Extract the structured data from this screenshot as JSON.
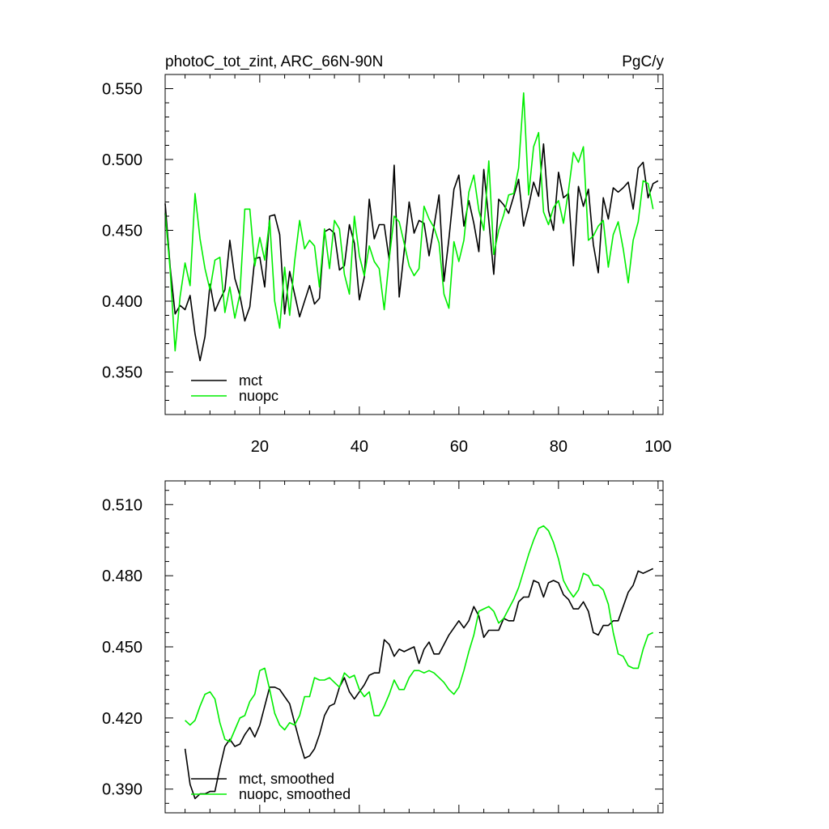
{
  "chart_data": [
    {
      "type": "line",
      "title": "photoC_tot_zint, ARC_66N-90N",
      "units": "PgC/y",
      "xlim": [
        1,
        101
      ],
      "ylim": [
        0.32,
        0.56
      ],
      "xticks": [
        20,
        40,
        60,
        80,
        100
      ],
      "xticklabels": [
        "20",
        "40",
        "60",
        "80",
        "100"
      ],
      "yticks": [
        0.35,
        0.4,
        0.45,
        0.5,
        0.55
      ],
      "yticklabels": [
        "0.350",
        "0.400",
        "0.450",
        "0.500",
        "0.550"
      ],
      "x_start": 1,
      "legend_position": "bottom-left",
      "series": [
        {
          "name": "mct",
          "color": "#000000",
          "values": [
            0.469,
            0.424,
            0.391,
            0.397,
            0.394,
            0.404,
            0.377,
            0.358,
            0.375,
            0.412,
            0.393,
            0.401,
            0.408,
            0.443,
            0.416,
            0.404,
            0.386,
            0.396,
            0.43,
            0.431,
            0.41,
            0.46,
            0.461,
            0.447,
            0.391,
            0.421,
            0.405,
            0.389,
            0.4,
            0.411,
            0.398,
            0.402,
            0.449,
            0.451,
            0.448,
            0.422,
            0.425,
            0.454,
            0.441,
            0.401,
            0.417,
            0.472,
            0.444,
            0.454,
            0.454,
            0.429,
            0.496,
            0.403,
            0.435,
            0.47,
            0.448,
            0.457,
            0.455,
            0.432,
            0.453,
            0.475,
            0.414,
            0.444,
            0.479,
            0.489,
            0.453,
            0.471,
            0.455,
            0.435,
            0.493,
            0.457,
            0.419,
            0.472,
            0.468,
            0.462,
            0.474,
            0.486,
            0.453,
            0.467,
            0.484,
            0.474,
            0.511,
            0.464,
            0.45,
            0.491,
            0.473,
            0.476,
            0.425,
            0.481,
            0.467,
            0.479,
            0.44,
            0.42,
            0.473,
            0.458,
            0.48,
            0.477,
            0.48,
            0.484,
            0.465,
            0.494,
            0.498,
            0.473,
            0.483,
            0.485
          ]
        },
        {
          "name": "nuopc",
          "color": "#00ee00",
          "values": [
            0.462,
            0.422,
            0.365,
            0.403,
            0.427,
            0.411,
            0.476,
            0.444,
            0.423,
            0.408,
            0.429,
            0.431,
            0.392,
            0.41,
            0.388,
            0.405,
            0.465,
            0.465,
            0.425,
            0.445,
            0.429,
            0.457,
            0.4,
            0.381,
            0.424,
            0.39,
            0.428,
            0.457,
            0.437,
            0.443,
            0.439,
            0.41,
            0.451,
            0.423,
            0.457,
            0.451,
            0.419,
            0.405,
            0.46,
            0.432,
            0.418,
            0.439,
            0.428,
            0.423,
            0.394,
            0.43,
            0.46,
            0.456,
            0.441,
            0.425,
            0.418,
            0.423,
            0.467,
            0.458,
            0.452,
            0.441,
            0.405,
            0.395,
            0.442,
            0.428,
            0.443,
            0.477,
            0.489,
            0.464,
            0.45,
            0.499,
            0.433,
            0.45,
            0.461,
            0.475,
            0.476,
            0.494,
            0.547,
            0.475,
            0.509,
            0.519,
            0.463,
            0.454,
            0.466,
            0.471,
            0.455,
            0.478,
            0.505,
            0.498,
            0.509,
            0.443,
            0.446,
            0.453,
            0.457,
            0.424,
            0.447,
            0.456,
            0.437,
            0.413,
            0.443,
            0.456,
            0.485,
            0.483,
            0.465
          ]
        }
      ]
    },
    {
      "type": "line",
      "title": "",
      "units": "",
      "xlim": [
        1,
        101
      ],
      "ylim": [
        0.38,
        0.52
      ],
      "xticks": [
        20,
        40,
        60,
        80,
        100
      ],
      "xticklabels": [],
      "yticks": [
        0.39,
        0.42,
        0.45,
        0.48,
        0.51
      ],
      "yticklabels": [
        "0.390",
        "0.420",
        "0.450",
        "0.480",
        "0.510"
      ],
      "x_start": 5,
      "legend_position": "bottom-left",
      "series": [
        {
          "name": "mct, smoothed",
          "color": "#000000",
          "values": [
            0.407,
            0.392,
            0.386,
            0.388,
            0.388,
            0.389,
            0.389,
            0.399,
            0.408,
            0.411,
            0.408,
            0.409,
            0.413,
            0.416,
            0.412,
            0.417,
            0.425,
            0.433,
            0.433,
            0.432,
            0.429,
            0.426,
            0.418,
            0.41,
            0.403,
            0.404,
            0.407,
            0.413,
            0.421,
            0.425,
            0.426,
            0.433,
            0.437,
            0.431,
            0.428,
            0.431,
            0.434,
            0.438,
            0.439,
            0.439,
            0.453,
            0.451,
            0.446,
            0.449,
            0.448,
            0.449,
            0.45,
            0.443,
            0.449,
            0.452,
            0.447,
            0.447,
            0.451,
            0.455,
            0.458,
            0.461,
            0.458,
            0.461,
            0.467,
            0.463,
            0.454,
            0.457,
            0.457,
            0.457,
            0.462,
            0.461,
            0.461,
            0.469,
            0.471,
            0.471,
            0.478,
            0.477,
            0.471,
            0.477,
            0.478,
            0.477,
            0.472,
            0.47,
            0.466,
            0.466,
            0.469,
            0.465,
            0.456,
            0.455,
            0.459,
            0.459,
            0.461,
            0.461,
            0.467,
            0.473,
            0.476,
            0.482,
            0.481,
            0.482,
            0.483
          ]
        },
        {
          "name": "nuopc, smoothed",
          "color": "#00ee00",
          "values": [
            0.419,
            0.417,
            0.419,
            0.425,
            0.43,
            0.431,
            0.428,
            0.418,
            0.411,
            0.41,
            0.415,
            0.42,
            0.421,
            0.427,
            0.43,
            0.44,
            0.441,
            0.432,
            0.422,
            0.417,
            0.415,
            0.418,
            0.417,
            0.421,
            0.429,
            0.429,
            0.437,
            0.436,
            0.436,
            0.437,
            0.435,
            0.433,
            0.439,
            0.437,
            0.438,
            0.432,
            0.429,
            0.431,
            0.421,
            0.421,
            0.425,
            0.43,
            0.436,
            0.432,
            0.432,
            0.437,
            0.44,
            0.44,
            0.439,
            0.44,
            0.439,
            0.437,
            0.435,
            0.432,
            0.43,
            0.433,
            0.44,
            0.448,
            0.455,
            0.465,
            0.466,
            0.467,
            0.465,
            0.46,
            0.462,
            0.466,
            0.47,
            0.475,
            0.482,
            0.489,
            0.495,
            0.5,
            0.501,
            0.499,
            0.494,
            0.487,
            0.478,
            0.474,
            0.471,
            0.474,
            0.481,
            0.48,
            0.476,
            0.476,
            0.474,
            0.468,
            0.456,
            0.447,
            0.446,
            0.442,
            0.441,
            0.441,
            0.449,
            0.455,
            0.456
          ]
        }
      ]
    }
  ]
}
